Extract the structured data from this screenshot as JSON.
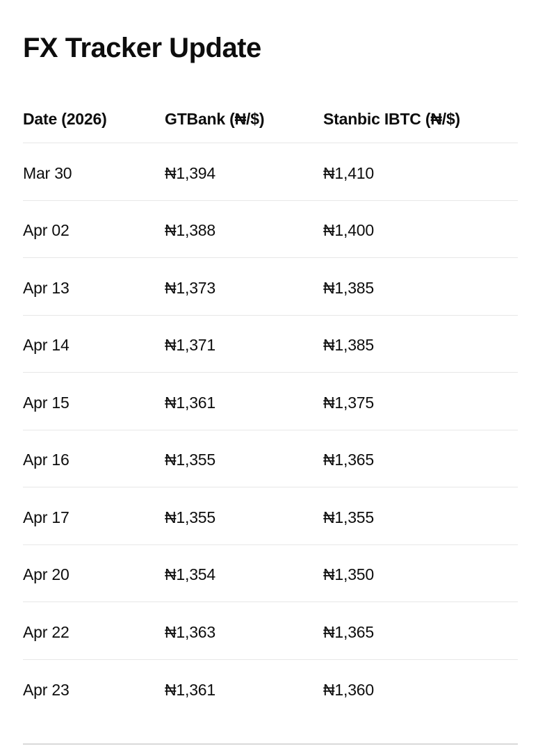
{
  "page": {
    "title": "FX Tracker Update"
  },
  "table": {
    "columns": [
      "Date (2026)",
      "GTBank (₦/$)",
      "Stanbic IBTC (₦/$)"
    ],
    "rows": [
      [
        "Mar 30",
        "₦1,394",
        "₦1,410"
      ],
      [
        "Apr 02",
        "₦1,388",
        "₦1,400"
      ],
      [
        "Apr 13",
        "₦1,373",
        "₦1,385"
      ],
      [
        "Apr 14",
        "₦1,371",
        "₦1,385"
      ],
      [
        "Apr 15",
        "₦1,361",
        "₦1,375"
      ],
      [
        "Apr 16",
        "₦1,355",
        "₦1,365"
      ],
      [
        "Apr 17",
        "₦1,355",
        "₦1,355"
      ],
      [
        "Apr 20",
        "₦1,354",
        "₦1,350"
      ],
      [
        "Apr 22",
        "₦1,363",
        "₦1,365"
      ],
      [
        "Apr 23",
        "₦1,361",
        "₦1,360"
      ]
    ]
  },
  "colors": {
    "text": "#0d0d0d",
    "row_divider": "#e7e7e7",
    "bottom_rule": "#d9d9d9",
    "background": "#ffffff"
  }
}
